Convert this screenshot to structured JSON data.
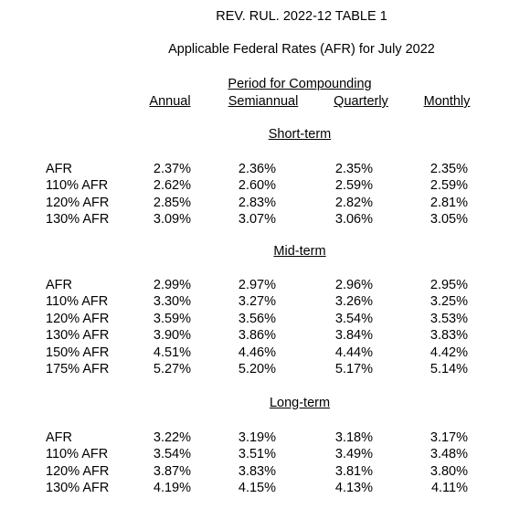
{
  "header": {
    "title": "REV. RUL. 2022-12 TABLE 1",
    "subtitle": "Applicable Federal Rates (AFR) for July 2022"
  },
  "table": {
    "period_header": "Period for Compounding",
    "columns": [
      "Annual",
      "Semiannual",
      "Quarterly",
      "Monthly"
    ],
    "sections": [
      {
        "name": "Short-term",
        "rows": [
          {
            "label": "AFR",
            "values": [
              "2.37%",
              "2.36%",
              "2.35%",
              "2.35%"
            ]
          },
          {
            "label": "110% AFR",
            "values": [
              "2.62%",
              "2.60%",
              "2.59%",
              "2.59%"
            ]
          },
          {
            "label": "120% AFR",
            "values": [
              "2.85%",
              "2.83%",
              "2.82%",
              "2.81%"
            ]
          },
          {
            "label": "130% AFR",
            "values": [
              "3.09%",
              "3.07%",
              "3.06%",
              "3.05%"
            ]
          }
        ]
      },
      {
        "name": "Mid-term",
        "rows": [
          {
            "label": "AFR",
            "values": [
              "2.99%",
              "2.97%",
              "2.96%",
              "2.95%"
            ]
          },
          {
            "label": "110% AFR",
            "values": [
              "3.30%",
              "3.27%",
              "3.26%",
              "3.25%"
            ]
          },
          {
            "label": "120% AFR",
            "values": [
              "3.59%",
              "3.56%",
              "3.54%",
              "3.53%"
            ]
          },
          {
            "label": "130% AFR",
            "values": [
              "3.90%",
              "3.86%",
              "3.84%",
              "3.83%"
            ]
          },
          {
            "label": "150% AFR",
            "values": [
              "4.51%",
              "4.46%",
              "4.44%",
              "4.42%"
            ]
          },
          {
            "label": "175% AFR",
            "values": [
              "5.27%",
              "5.20%",
              "5.17%",
              "5.14%"
            ]
          }
        ]
      },
      {
        "name": "Long-term",
        "rows": [
          {
            "label": "AFR",
            "values": [
              "3.22%",
              "3.19%",
              "3.18%",
              "3.17%"
            ]
          },
          {
            "label": "110% AFR",
            "values": [
              "3.54%",
              "3.51%",
              "3.49%",
              "3.48%"
            ]
          },
          {
            "label": "120% AFR",
            "values": [
              "3.87%",
              "3.83%",
              "3.81%",
              "3.80%"
            ]
          },
          {
            "label": "130% AFR",
            "values": [
              "4.19%",
              "4.15%",
              "4.13%",
              "4.11%"
            ]
          }
        ]
      }
    ]
  }
}
